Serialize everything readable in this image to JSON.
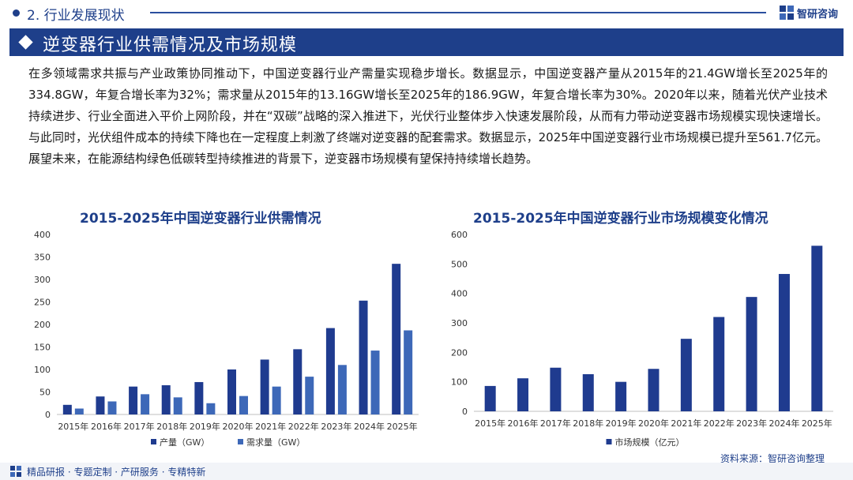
{
  "header": {
    "section_label": "2. 行业发展现状",
    "brand_name": "智研咨询"
  },
  "banner": {
    "title": "逆变器行业供需情况及市场规模"
  },
  "intro_text": "在多领域需求共振与产业政策协同推动下，中国逆变器行业产需量实现稳步增长。数据显示，中国逆变器产量从2015年的21.4GW增长至2025年的334.8GW，年复合增长率为32%；需求量从2015年的13.16GW增长至2025年的186.9GW，年复合增长率为30%。2020年以来，随着光伏产业技术持续进步、行业全面进入平价上网阶段，并在“双碳”战略的深入推进下，光伏行业整体步入快速发展阶段，从而有力带动逆变器市场规模实现快速增长。与此同时，光伏组件成本的持续下降也在一定程度上刺激了终端对逆变器的配套需求。数据显示，2025年中国逆变器行业市场规模已提升至561.7亿元。展望未来，在能源结构绿色低碳转型持续推进的背景下，逆变器市场规模有望保持持续增长趋势。",
  "footer": {
    "text": "精品研报 · 专题定制 · 产研服务 · 专精特新",
    "source": "资料来源：智研咨询整理"
  },
  "colors": {
    "primary": "#1e3f8a",
    "series_dark": "#1f3b8f",
    "series_light": "#3d68b8",
    "axis": "#bfbfbf",
    "tick_text": "#333333"
  },
  "chart_data": [
    {
      "type": "bar",
      "title": "2015-2025年中国逆变器行业供需情况",
      "categories": [
        "2015年",
        "2016年",
        "2017年",
        "2018年",
        "2019年",
        "2020年",
        "2021年",
        "2022年",
        "2023年",
        "2024年",
        "2025年"
      ],
      "series": [
        {
          "name": "产量（GW）",
          "color": "#1f3b8f",
          "values": [
            21.4,
            40,
            62,
            65,
            72,
            100,
            122,
            145,
            192,
            253,
            334.8
          ]
        },
        {
          "name": "需求量（GW）",
          "color": "#3d68b8",
          "values": [
            13.16,
            29,
            45,
            38,
            25,
            41,
            62,
            84,
            110,
            142,
            186.9
          ]
        }
      ],
      "ylim": [
        0,
        400
      ],
      "yticks": [
        0,
        50,
        100,
        150,
        200,
        250,
        300,
        350,
        400
      ],
      "xlabel": "",
      "ylabel": "",
      "legend": "bottom"
    },
    {
      "type": "bar",
      "title": "2015-2025年中国逆变器行业市场规模变化情况",
      "categories": [
        "2015年",
        "2016年",
        "2017年",
        "2018年",
        "2019年",
        "2020年",
        "2021年",
        "2022年",
        "2023年",
        "2024年",
        "2025年"
      ],
      "series": [
        {
          "name": "市场规模（亿元）",
          "color": "#1f3b8f",
          "values": [
            86,
            112,
            148,
            126,
            100,
            144,
            246,
            320,
            388,
            466,
            561.7
          ]
        }
      ],
      "ylim": [
        0,
        600
      ],
      "yticks": [
        0,
        100,
        200,
        300,
        400,
        500,
        600
      ],
      "xlabel": "",
      "ylabel": "",
      "legend": "bottom"
    }
  ]
}
